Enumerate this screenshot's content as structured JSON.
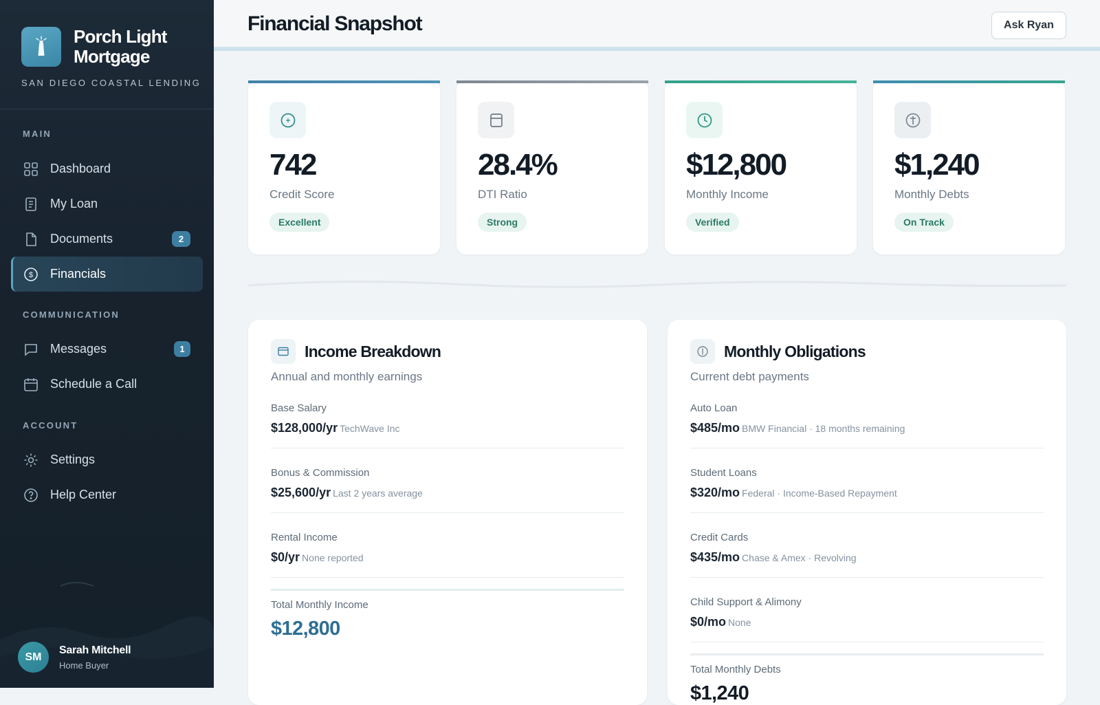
{
  "brand": {
    "name_line1": "Porch Light",
    "name_line2": "Mortgage",
    "tagline": "SAN DIEGO COASTAL LENDING",
    "logo_icon": "lighthouse-icon"
  },
  "sidebar": {
    "sections": {
      "main": "MAIN",
      "communication": "COMMUNICATION",
      "account": "ACCOUNT"
    },
    "items": [
      {
        "label": "Dashboard",
        "icon": "grid-icon"
      },
      {
        "label": "My Loan",
        "icon": "file-text-icon"
      },
      {
        "label": "Documents",
        "icon": "document-icon",
        "badge": "2"
      },
      {
        "label": "Financials",
        "icon": "dollar-circle-icon",
        "active": true
      },
      {
        "label": "Messages",
        "icon": "chat-icon",
        "badge": "1"
      },
      {
        "label": "Schedule a Call",
        "icon": "calendar-icon"
      },
      {
        "label": "Settings",
        "icon": "gear-icon"
      },
      {
        "label": "Help Center",
        "icon": "help-circle-icon"
      }
    ]
  },
  "user": {
    "initials": "SM",
    "name": "Sarah Mitchell",
    "role": "Home Buyer"
  },
  "header": {
    "title": "Financial Snapshot",
    "ask_button": "Ask Ryan"
  },
  "stats": [
    {
      "value": "742",
      "label": "Credit Score",
      "chip": "Excellent",
      "icon": "gauge-icon",
      "accent": "#3f82a8"
    },
    {
      "value": "28.4%",
      "label": "DTI Ratio",
      "chip": "Strong",
      "icon": "calculator-icon",
      "accent": "#8a929c"
    },
    {
      "value": "$12,800",
      "label": "Monthly Income",
      "chip": "Verified",
      "icon": "clock-icon",
      "accent": "#3aa58f"
    },
    {
      "value": "$1,240",
      "label": "Monthly Debts",
      "chip": "On Track",
      "icon": "coin-icon",
      "accent": "#4a95b3"
    }
  ],
  "income": {
    "title": "Income Breakdown",
    "subtitle": "Annual and monthly earnings",
    "rows": [
      {
        "label": "Base Salary",
        "amount": "$128,000/yr",
        "note": "TechWave Inc"
      },
      {
        "label": "Bonus & Commission",
        "amount": "$25,600/yr",
        "note": "Last 2 years average"
      },
      {
        "label": "Rental Income",
        "amount": "$0/yr",
        "note": "None reported"
      }
    ],
    "total_label": "Total Monthly Income",
    "total_value": "$12,800"
  },
  "obligations": {
    "title": "Monthly Obligations",
    "subtitle": "Current debt payments",
    "rows": [
      {
        "label": "Auto Loan",
        "amount": "$485/mo",
        "note": "BMW Financial · 18 months remaining"
      },
      {
        "label": "Student Loans",
        "amount": "$320/mo",
        "note": "Federal · Income-Based Repayment"
      },
      {
        "label": "Credit Cards",
        "amount": "$435/mo",
        "note": "Chase & Amex · Revolving"
      },
      {
        "label": "Child Support & Alimony",
        "amount": "$0/mo",
        "note": "None"
      }
    ],
    "total_label": "Total Monthly Debts",
    "total_value": "$1,240"
  },
  "colors": {
    "sidebar_bg": "#1a2733",
    "accent": "#3f82a8",
    "chip_bg": "#e7f4f0",
    "chip_text": "#2a7a65"
  }
}
